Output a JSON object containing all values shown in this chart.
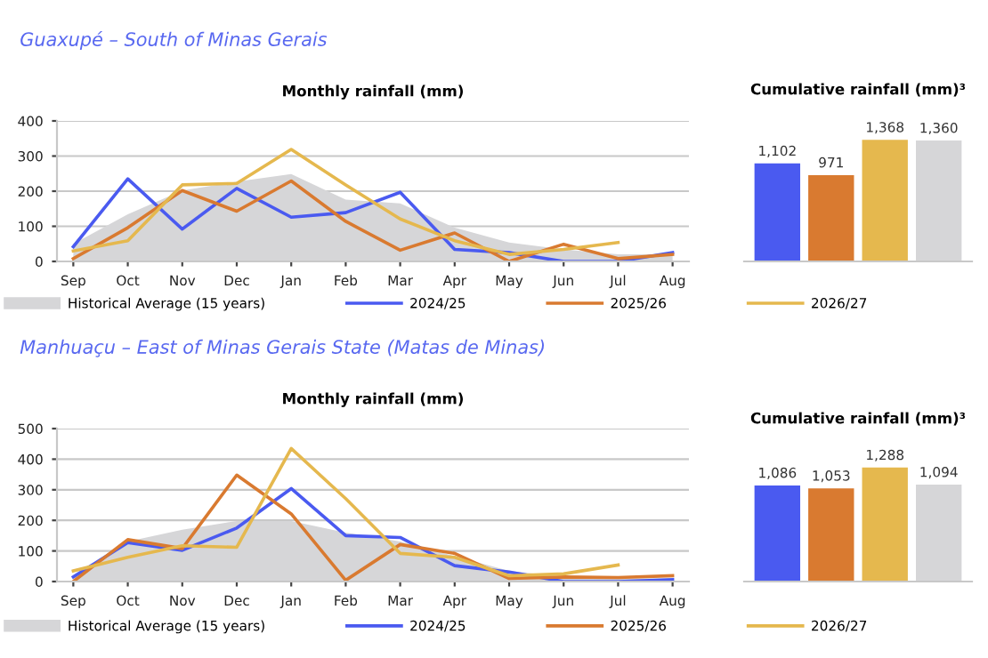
{
  "chart_data": [
    {
      "type": "line",
      "subtitle": "Guaxupé – South of Minas Gerais",
      "title": "Monthly rainfall (mm)",
      "categories": [
        "Sep",
        "Oct",
        "Nov",
        "Dec",
        "Jan",
        "Feb",
        "Mar",
        "Apr",
        "May",
        "Jun",
        "Jul",
        "Aug"
      ],
      "series": [
        {
          "name": "Historical Average (15 years)",
          "type": "area",
          "color": "#d6d6d8",
          "values": [
            50,
            134,
            202,
            227,
            249,
            176,
            165,
            96,
            54,
            34,
            20,
            20
          ]
        },
        {
          "name": "2024/25",
          "color": "#4a5af0",
          "values": [
            42,
            235,
            92,
            208,
            126,
            139,
            197,
            34,
            25,
            0,
            0,
            25
          ]
        },
        {
          "name": "2025/26",
          "color": "#d97a30",
          "values": [
            8,
            96,
            202,
            143,
            229,
            114,
            32,
            81,
            0,
            49,
            8,
            20
          ]
        },
        {
          "name": "2026/27",
          "color": "#e5b84e",
          "values": [
            30,
            59,
            218,
            222,
            319,
            218,
            121,
            59,
            20,
            34,
            54,
            null
          ]
        }
      ],
      "ylim": [
        0,
        400
      ],
      "yticks": [
        0,
        100,
        200,
        300,
        400
      ],
      "grid": "y",
      "legend": "bottom"
    },
    {
      "type": "bar",
      "title": "Cumulative rainfall (mm)³",
      "categories": [
        null,
        null,
        null,
        null
      ],
      "values": [
        1102,
        971,
        1368,
        1360
      ],
      "colors": [
        "#4a5af0",
        "#d97a30",
        "#e5b84e",
        "#d6d6d8"
      ],
      "value_labels": [
        "1,102",
        "971",
        "1,368",
        "1,360"
      ]
    },
    {
      "type": "line",
      "subtitle": "Manhuaçu – East of Minas Gerais State (Matas de Minas)",
      "title": "Monthly rainfall (mm)",
      "categories": [
        "Sep",
        "Oct",
        "Nov",
        "Dec",
        "Jan",
        "Feb",
        "Mar",
        "Apr",
        "May",
        "Jun",
        "Jul",
        "Aug"
      ],
      "series": [
        {
          "name": "Historical Average (15 years)",
          "type": "area",
          "color": "#d6d6d8",
          "values": [
            15,
            131,
            169,
            198,
            198,
            160,
            131,
            83,
            35,
            15,
            10,
            10
          ]
        },
        {
          "name": "2024/25",
          "color": "#4a5af0",
          "values": [
            15,
            127,
            102,
            175,
            304,
            150,
            144,
            52,
            31,
            0,
            0,
            6
          ]
        },
        {
          "name": "2025/26",
          "color": "#d97a30",
          "values": [
            0,
            137,
            108,
            348,
            221,
            4,
            121,
            92,
            10,
            15,
            13,
            19
          ]
        },
        {
          "name": "2026/27",
          "color": "#e5b84e",
          "values": [
            35,
            79,
            117,
            112,
            435,
            271,
            92,
            79,
            19,
            25,
            54,
            null
          ]
        }
      ],
      "ylim": [
        0,
        500
      ],
      "yticks": [
        0,
        100,
        200,
        300,
        400,
        500
      ],
      "grid": "y",
      "legend": "bottom"
    },
    {
      "type": "bar",
      "title": "Cumulative rainfall (mm)³",
      "categories": [
        null,
        null,
        null,
        null
      ],
      "values": [
        1086,
        1053,
        1288,
        1094
      ],
      "colors": [
        "#4a5af0",
        "#d97a30",
        "#e5b84e",
        "#d6d6d8"
      ],
      "value_labels": [
        "1,086",
        "1,053",
        "1,288",
        "1,094"
      ]
    }
  ]
}
